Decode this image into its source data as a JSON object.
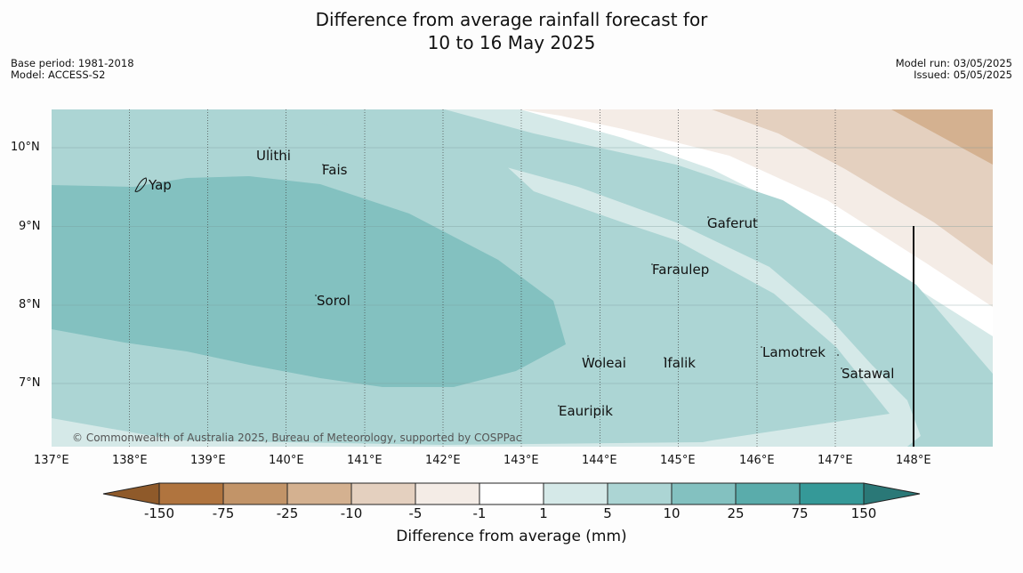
{
  "title_line1": "Difference from average rainfall forecast for",
  "title_line2": "10 to 16 May 2025",
  "base_period": "Base period: 1981-2018",
  "model": "Model: ACCESS-S2",
  "model_run": "Model run: 03/05/2025",
  "issued": "Issued: 05/05/2025",
  "credit": "© Commonwealth of Australia 2025, Bureau of Meteorology, supported by COSPPac",
  "lat_labels": [
    "10°N",
    "9°N",
    "8°N",
    "7°N"
  ],
  "lon_labels": [
    "137°E",
    "138°E",
    "139°E",
    "140°E",
    "141°E",
    "142°E",
    "143°E",
    "144°E",
    "145°E",
    "146°E",
    "147°E",
    "148°E"
  ],
  "places": {
    "ulithi": "Ulithi",
    "fais": "Fais",
    "yap": "Yap",
    "gaferut": "Gaferut",
    "faraulep": "Faraulep",
    "sorol": "Sorol",
    "woleai": "Woleai",
    "ifalik": "Ifalik",
    "lamotrek": "Lamotrek",
    "satawal": "Satawal",
    "eauripik": "Eauripik"
  },
  "colorbar": {
    "title": "Difference from average (mm)",
    "labels": [
      "-150",
      "-75",
      "-25",
      "-10",
      "-5",
      "-1",
      "1",
      "5",
      "10",
      "25",
      "75",
      "150"
    ],
    "colors": [
      "#8f5a2a",
      "#b0743e",
      "#c29468",
      "#d4b190",
      "#e4d0bf",
      "#f4ece6",
      "#ffffff",
      "#d5e9e8",
      "#acd5d4",
      "#83c1c0",
      "#5aacab",
      "#359998",
      "#2a7877"
    ]
  }
}
